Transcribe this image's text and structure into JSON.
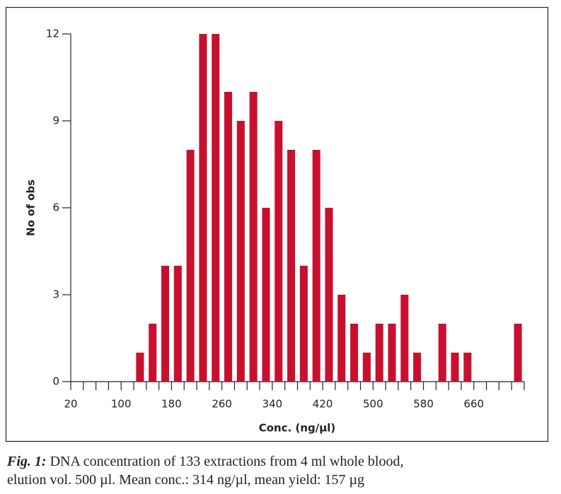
{
  "chart_data": {
    "type": "histogram",
    "x_label": "Conc. (ng/µl)",
    "y_label": "No of obs",
    "bins": [
      20,
      40,
      60,
      80,
      100,
      120,
      140,
      160,
      180,
      200,
      220,
      240,
      260,
      280,
      300,
      320,
      340,
      360,
      380,
      400,
      420,
      440,
      460,
      480,
      500,
      520,
      540,
      560,
      580,
      600,
      620,
      640,
      660,
      680,
      700,
      720,
      740
    ],
    "counts": [
      0,
      0,
      0,
      0,
      0,
      1,
      2,
      4,
      4,
      8,
      12,
      12,
      10,
      9,
      10,
      6,
      9,
      8,
      4,
      8,
      6,
      3,
      2,
      1,
      2,
      2,
      3,
      1,
      0,
      2,
      1,
      1,
      0,
      0,
      0,
      2
    ],
    "color": "#c8102e",
    "xlim": [
      20,
      740
    ],
    "xticks": [
      20,
      100,
      180,
      260,
      340,
      420,
      500,
      580,
      660
    ],
    "ylim": [
      0,
      12
    ],
    "yticks": [
      0,
      3,
      6,
      9,
      12
    ]
  },
  "caption_label": "Fig. 1:",
  "caption_lines": [
    "DNA concentration of 133 extractions from 4 ml whole blood,",
    "elution vol. 500 µl. Mean conc.: 314 ng/µl, mean yield: 157 µg"
  ]
}
